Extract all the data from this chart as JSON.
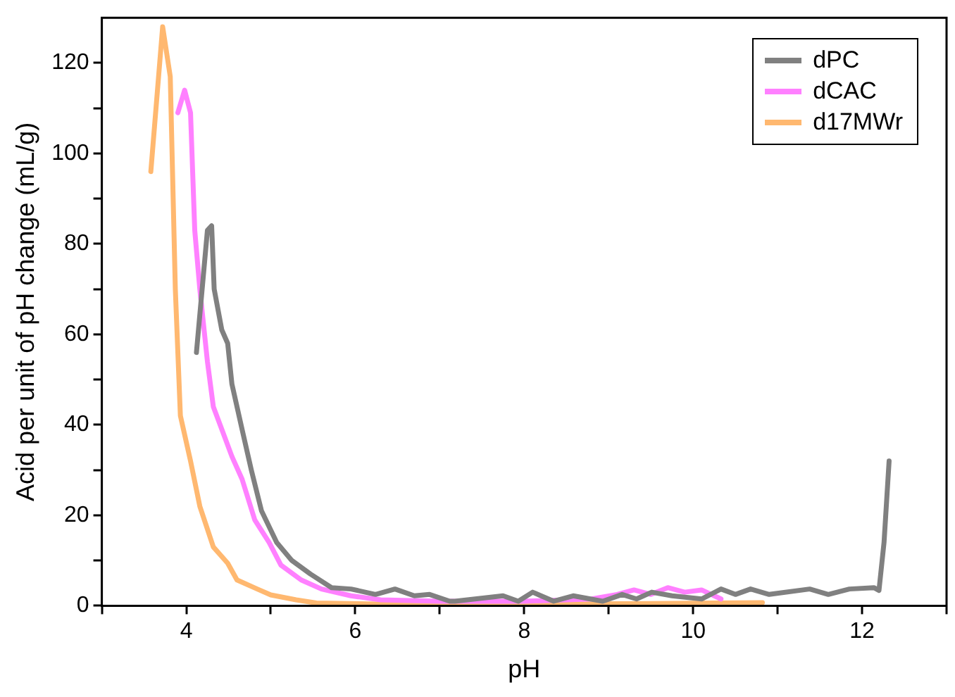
{
  "chart_data": {
    "type": "line",
    "xlabel": "pH",
    "ylabel": "Acid per unit of pH change (mL/g)",
    "xlim": [
      3,
      13
    ],
    "xticks": [
      {
        "value": 3,
        "label": null
      },
      4,
      {
        "value": 5,
        "label": null
      },
      6,
      {
        "value": 7,
        "label": null
      },
      8,
      {
        "value": 9,
        "label": null
      },
      10,
      {
        "value": 11,
        "label": null
      },
      12,
      {
        "value": 13,
        "label": null
      }
    ],
    "ylim": [
      0,
      130
    ],
    "yticks": [
      0,
      {
        "value": 10,
        "label": null
      },
      20,
      {
        "value": 30,
        "label": null
      },
      40,
      {
        "value": 50,
        "label": null
      },
      60,
      {
        "value": 70,
        "label": null
      },
      80,
      {
        "value": 90,
        "label": null
      },
      100,
      {
        "value": 110,
        "label": null
      },
      120
    ],
    "grid": false,
    "legend": "top right",
    "marker": "none",
    "line_style": "solid",
    "series": [
      {
        "name": "dPC",
        "color": "#808080",
        "x": [
          4.12,
          4.25,
          4.3,
          4.33,
          4.42,
          4.49,
          4.54,
          4.66,
          4.77,
          4.89,
          5.07,
          5.25,
          5.47,
          5.72,
          5.95,
          6.24,
          6.47,
          6.7,
          6.88,
          7.12,
          7.18,
          7.75,
          7.93,
          8.1,
          8.35,
          8.58,
          8.93,
          9.16,
          9.33,
          9.51,
          9.75,
          10.1,
          10.33,
          10.5,
          10.68,
          10.9,
          11.38,
          11.6,
          11.85,
          12.14,
          12.2,
          12.26,
          12.32
        ],
        "values": [
          56,
          83,
          84,
          70,
          61,
          58,
          49,
          39,
          30,
          21,
          14,
          10,
          7,
          4,
          3.7,
          2.5,
          3.7,
          2.2,
          2.5,
          1,
          1,
          2.2,
          1,
          3,
          1,
          2.2,
          1,
          2.5,
          1.5,
          3,
          2.2,
          1.5,
          3.7,
          2.5,
          3.7,
          2.5,
          3.7,
          2.5,
          3.7,
          4,
          3.4,
          14,
          32
        ]
      },
      {
        "name": "dCAC",
        "color": "#ff80ff",
        "x": [
          3.9,
          3.98,
          4.05,
          4.1,
          4.16,
          4.25,
          4.32,
          4.42,
          4.54,
          4.66,
          4.81,
          4.98,
          5.12,
          5.36,
          5.6,
          5.95,
          6.3,
          7,
          8,
          8.8,
          9.1,
          9.3,
          9.5,
          9.7,
          9.9,
          10.1,
          10.33
        ],
        "values": [
          109,
          114,
          109,
          83,
          70,
          54,
          44,
          39,
          33,
          28,
          19,
          14,
          9,
          5.7,
          3.7,
          2.2,
          1.3,
          1,
          1,
          1.5,
          2.5,
          3.5,
          2.5,
          4,
          3,
          3.5,
          1.5
        ]
      },
      {
        "name": "d17MWr",
        "color": "#ffb870",
        "x": [
          3.58,
          3.72,
          3.81,
          3.87,
          3.93,
          4.05,
          4.16,
          4.32,
          4.49,
          4.6,
          4.84,
          5,
          5.3,
          5.54,
          6.5,
          8,
          9.5,
          10.82
        ],
        "values": [
          96,
          128,
          117,
          70,
          42,
          32,
          22,
          13,
          9.4,
          5.7,
          3.7,
          2.4,
          1.3,
          0.6,
          0.3,
          0.3,
          0.5,
          0.7
        ]
      }
    ]
  }
}
